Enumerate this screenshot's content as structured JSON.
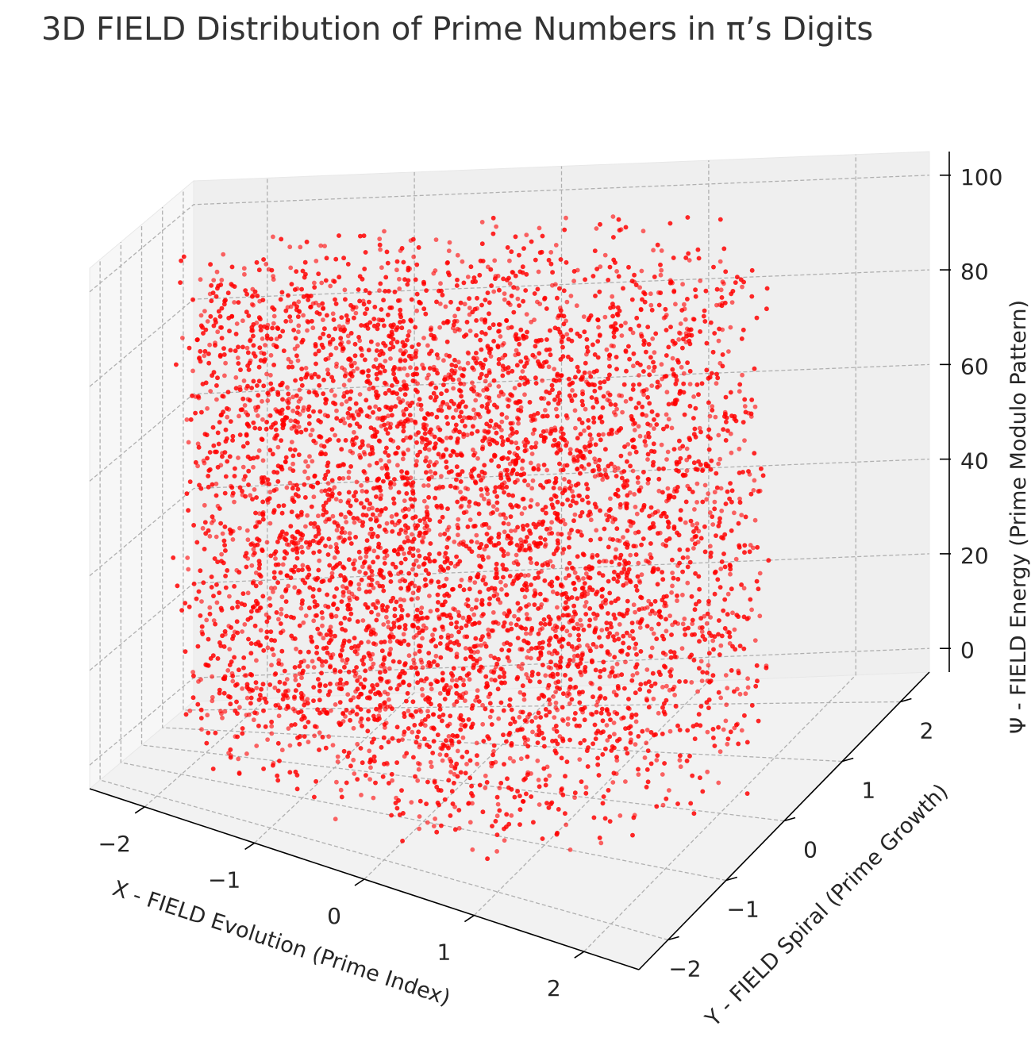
{
  "chart_data": {
    "type": "scatter",
    "title": "3D FIELD Distribution of Prime Numbers in π’s Digits",
    "xlabel": "X - FIELD Evolution (Prime Index)",
    "ylabel": "Y - FIELD Spiral (Prime Growth)",
    "zlabel": "Ψ - FIELD Energy (Prime Modulo Pattern)",
    "xlim": [
      -2.5,
      2.5
    ],
    "ylim": [
      -2.5,
      2.5
    ],
    "zlim": [
      -5,
      105
    ],
    "x_ticks": [
      "−2",
      "−1",
      "0",
      "1",
      "2"
    ],
    "y_ticks": [
      "−2",
      "−1",
      "0",
      "1",
      "2"
    ],
    "z_ticks": [
      "0",
      "20",
      "40",
      "60",
      "80",
      "100"
    ],
    "point_color": "#ff0000",
    "point_alpha": 0.6,
    "grid": true,
    "series": [
      {
        "points_description_note": "",
        "sample_points": [
          {
            "x": -1.8,
            "y": 0.9,
            "z": 52
          },
          {
            "x": 0.3,
            "y": -1.2,
            "z": 18
          },
          {
            "x": 1.5,
            "y": 1.7,
            "z": 88
          },
          {
            "x": -0.6,
            "y": -2.1,
            "z": 34
          },
          {
            "x": 2.1,
            "y": 0.2,
            "z": 71
          },
          {
            "x": -1.1,
            "y": 1.4,
            "z": 6
          },
          {
            "x": 0.9,
            "y": 2.2,
            "z": 97
          },
          {
            "x": -2.2,
            "y": -0.4,
            "z": 63
          }
        ]
      }
    ]
  }
}
